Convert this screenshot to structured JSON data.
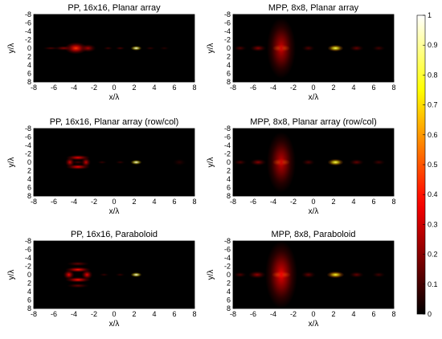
{
  "chart_data": [
    {
      "type": "heatmap",
      "panel": "top-left",
      "title": "PP, 16x16, Planar array",
      "xlabel": "x/λ",
      "ylabel": "y/λ",
      "xlim": [
        -8,
        8
      ],
      "ylim": [
        -8,
        8
      ],
      "y_direction": "reversed",
      "xticks": [
        "-8",
        "-6",
        "-4",
        "-2",
        "0",
        "2",
        "4",
        "6",
        "8"
      ],
      "yticks": [
        "-8",
        "-6",
        "-4",
        "-2",
        "0",
        "2",
        "4",
        "6",
        "8"
      ],
      "features": [
        {
          "x": 2.2,
          "y": 0,
          "value": 1.0,
          "sx": 0.35,
          "sy": 0.35
        },
        {
          "x": -3.8,
          "y": 0,
          "value": 0.45,
          "sx": 0.7,
          "sy": 0.9
        },
        {
          "x": -2.6,
          "y": 0,
          "value": 0.25,
          "sx": 0.5,
          "sy": 0.6
        },
        {
          "x": -5.0,
          "y": 0,
          "value": 0.2,
          "sx": 0.6,
          "sy": 0.35
        },
        {
          "x": -6.3,
          "y": 0,
          "value": 0.12,
          "sx": 0.5,
          "sy": 0.25
        },
        {
          "x": 0.6,
          "y": 0,
          "value": 0.12,
          "sx": 0.3,
          "sy": 0.25
        },
        {
          "x": -0.6,
          "y": 0,
          "value": 0.1,
          "sx": 0.3,
          "sy": 0.25
        },
        {
          "x": 3.6,
          "y": 0,
          "value": 0.08,
          "sx": 0.3,
          "sy": 0.25
        },
        {
          "x": 5.0,
          "y": 0,
          "value": 0.06,
          "sx": 0.3,
          "sy": 0.25
        }
      ]
    },
    {
      "type": "heatmap",
      "panel": "top-right",
      "title": "MPP, 8x8, Planar array",
      "xlabel": "x/λ",
      "ylabel": "y/λ",
      "xlim": [
        -8,
        8
      ],
      "ylim": [
        -8,
        8
      ],
      "y_direction": "reversed",
      "xticks": [
        "-8",
        "-6",
        "-4",
        "-2",
        "0",
        "2",
        "4",
        "6",
        "8"
      ],
      "yticks": [
        "-8",
        "-6",
        "-4",
        "-2",
        "0",
        "2",
        "4",
        "6",
        "8"
      ],
      "features": [
        {
          "x": -3.2,
          "y": 0,
          "value": 0.9,
          "sx": 0.55,
          "sy": 0.55
        },
        {
          "x": 2.2,
          "y": 0,
          "value": 0.85,
          "sx": 0.5,
          "sy": 0.5
        },
        {
          "x": -3.2,
          "y": 0,
          "value": 0.3,
          "sx": 0.9,
          "sy": 4.5
        },
        {
          "x": -5.5,
          "y": 0,
          "value": 0.2,
          "sx": 0.5,
          "sy": 0.5
        },
        {
          "x": 4.3,
          "y": 0,
          "value": 0.15,
          "sx": 0.45,
          "sy": 0.45
        },
        {
          "x": -0.5,
          "y": 0,
          "value": 0.12,
          "sx": 0.4,
          "sy": 0.45
        },
        {
          "x": -7.3,
          "y": 0,
          "value": 0.12,
          "sx": 0.4,
          "sy": 0.4
        },
        {
          "x": 6.5,
          "y": 0,
          "value": 0.1,
          "sx": 0.4,
          "sy": 0.4
        }
      ]
    },
    {
      "type": "heatmap",
      "panel": "middle-left",
      "title": "PP, 16x16, Planar array (row/col)",
      "xlabel": "x/λ",
      "ylabel": "y/λ",
      "xlim": [
        -8,
        8
      ],
      "ylim": [
        -8,
        8
      ],
      "y_direction": "reversed",
      "xticks": [
        "-8",
        "-6",
        "-4",
        "-2",
        "0",
        "2",
        "4",
        "6",
        "8"
      ],
      "yticks": [
        "-8",
        "-6",
        "-4",
        "-2",
        "0",
        "2",
        "4",
        "6",
        "8"
      ],
      "features": [
        {
          "x": 2.2,
          "y": 0,
          "value": 1.0,
          "sx": 0.35,
          "sy": 0.35
        },
        {
          "x": -3.6,
          "y": -1.1,
          "value": 0.35,
          "sx": 0.75,
          "sy": 0.4
        },
        {
          "x": -3.6,
          "y": 1.1,
          "value": 0.35,
          "sx": 0.75,
          "sy": 0.4
        },
        {
          "x": -4.4,
          "y": 0,
          "value": 0.3,
          "sx": 0.3,
          "sy": 0.7
        },
        {
          "x": -2.8,
          "y": 0,
          "value": 0.3,
          "sx": 0.3,
          "sy": 0.7
        },
        {
          "x": -3.6,
          "y": 0,
          "value": 0.1,
          "sx": 0.4,
          "sy": 0.3
        },
        {
          "x": -1.2,
          "y": 0,
          "value": 0.08,
          "sx": 0.3,
          "sy": 0.25
        },
        {
          "x": 0.6,
          "y": 0,
          "value": 0.08,
          "sx": 0.3,
          "sy": 0.25
        },
        {
          "x": 6.5,
          "y": 0,
          "value": 0.06,
          "sx": 0.4,
          "sy": 0.5
        }
      ]
    },
    {
      "type": "heatmap",
      "panel": "middle-right",
      "title": "MPP, 8x8, Planar array (row/col)",
      "xlabel": "x/λ",
      "ylabel": "y/λ",
      "xlim": [
        -8,
        8
      ],
      "ylim": [
        -8,
        8
      ],
      "y_direction": "reversed",
      "xticks": [
        "-8",
        "-6",
        "-4",
        "-2",
        "0",
        "2",
        "4",
        "6",
        "8"
      ],
      "yticks": [
        "-8",
        "-6",
        "-4",
        "-2",
        "0",
        "2",
        "4",
        "6",
        "8"
      ],
      "features": [
        {
          "x": -3.2,
          "y": 0,
          "value": 0.9,
          "sx": 0.55,
          "sy": 0.55
        },
        {
          "x": 2.2,
          "y": 0,
          "value": 0.85,
          "sx": 0.5,
          "sy": 0.5
        },
        {
          "x": -3.2,
          "y": 0,
          "value": 0.3,
          "sx": 0.9,
          "sy": 4.5
        },
        {
          "x": -5.5,
          "y": 0,
          "value": 0.2,
          "sx": 0.5,
          "sy": 0.5
        },
        {
          "x": 4.3,
          "y": 0,
          "value": 0.15,
          "sx": 0.45,
          "sy": 0.45
        },
        {
          "x": -0.5,
          "y": 0,
          "value": 0.12,
          "sx": 0.4,
          "sy": 0.45
        },
        {
          "x": -7.3,
          "y": 0,
          "value": 0.12,
          "sx": 0.4,
          "sy": 0.4
        },
        {
          "x": 6.5,
          "y": 0,
          "value": 0.1,
          "sx": 0.4,
          "sy": 0.4
        }
      ]
    },
    {
      "type": "heatmap",
      "panel": "bottom-left",
      "title": "PP, 16x16, Paraboloid",
      "xlabel": "x/λ",
      "ylabel": "y/λ",
      "xlim": [
        -8,
        8
      ],
      "ylim": [
        -8,
        8
      ],
      "y_direction": "reversed",
      "xticks": [
        "-8",
        "-6",
        "-4",
        "-2",
        "0",
        "2",
        "4",
        "6",
        "8"
      ],
      "yticks": [
        "-8",
        "-6",
        "-4",
        "-2",
        "0",
        "2",
        "4",
        "6",
        "8"
      ],
      "features": [
        {
          "x": 2.2,
          "y": 0,
          "value": 1.0,
          "sx": 0.35,
          "sy": 0.35
        },
        {
          "x": -3.6,
          "y": -1.2,
          "value": 0.4,
          "sx": 0.8,
          "sy": 0.4
        },
        {
          "x": -3.6,
          "y": 1.2,
          "value": 0.4,
          "sx": 0.8,
          "sy": 0.4
        },
        {
          "x": -4.5,
          "y": 0,
          "value": 0.35,
          "sx": 0.35,
          "sy": 0.7
        },
        {
          "x": -2.7,
          "y": 0,
          "value": 0.35,
          "sx": 0.35,
          "sy": 0.7
        },
        {
          "x": -3.6,
          "y": -2.6,
          "value": 0.15,
          "sx": 0.7,
          "sy": 0.35
        },
        {
          "x": -3.6,
          "y": 2.6,
          "value": 0.15,
          "sx": 0.7,
          "sy": 0.35
        },
        {
          "x": -1.0,
          "y": 0,
          "value": 0.08,
          "sx": 0.3,
          "sy": 0.25
        },
        {
          "x": 0.6,
          "y": 0,
          "value": 0.08,
          "sx": 0.3,
          "sy": 0.25
        }
      ]
    },
    {
      "type": "heatmap",
      "panel": "bottom-right",
      "title": "MPP, 8x8, Paraboloid",
      "xlabel": "x/λ",
      "ylabel": "y/λ",
      "xlim": [
        -8,
        8
      ],
      "ylim": [
        -8,
        8
      ],
      "y_direction": "reversed",
      "xticks": [
        "-8",
        "-6",
        "-4",
        "-2",
        "0",
        "2",
        "4",
        "6",
        "8"
      ],
      "yticks": [
        "-8",
        "-6",
        "-4",
        "-2",
        "0",
        "2",
        "4",
        "6",
        "8"
      ],
      "features": [
        {
          "x": -3.2,
          "y": 0,
          "value": 0.9,
          "sx": 0.6,
          "sy": 0.55
        },
        {
          "x": 2.2,
          "y": 0,
          "value": 0.8,
          "sx": 0.55,
          "sy": 0.5
        },
        {
          "x": -3.2,
          "y": 0,
          "value": 0.35,
          "sx": 1.0,
          "sy": 5.0
        },
        {
          "x": -5.6,
          "y": 0,
          "value": 0.22,
          "sx": 0.55,
          "sy": 0.55
        },
        {
          "x": 4.3,
          "y": 0,
          "value": 0.15,
          "sx": 0.45,
          "sy": 0.45
        },
        {
          "x": -0.5,
          "y": 0,
          "value": 0.15,
          "sx": 0.45,
          "sy": 0.5
        },
        {
          "x": -7.3,
          "y": 0,
          "value": 0.12,
          "sx": 0.4,
          "sy": 0.4
        },
        {
          "x": 6.5,
          "y": 0,
          "value": 0.1,
          "sx": 0.4,
          "sy": 0.4
        }
      ]
    }
  ],
  "colorbar": {
    "colormap": "hot",
    "range": [
      0,
      1
    ],
    "ticks": [
      "0",
      "0.1",
      "0.2",
      "0.3",
      "0.4",
      "0.5",
      "0.6",
      "0.7",
      "0.8",
      "0.9",
      "1"
    ]
  }
}
